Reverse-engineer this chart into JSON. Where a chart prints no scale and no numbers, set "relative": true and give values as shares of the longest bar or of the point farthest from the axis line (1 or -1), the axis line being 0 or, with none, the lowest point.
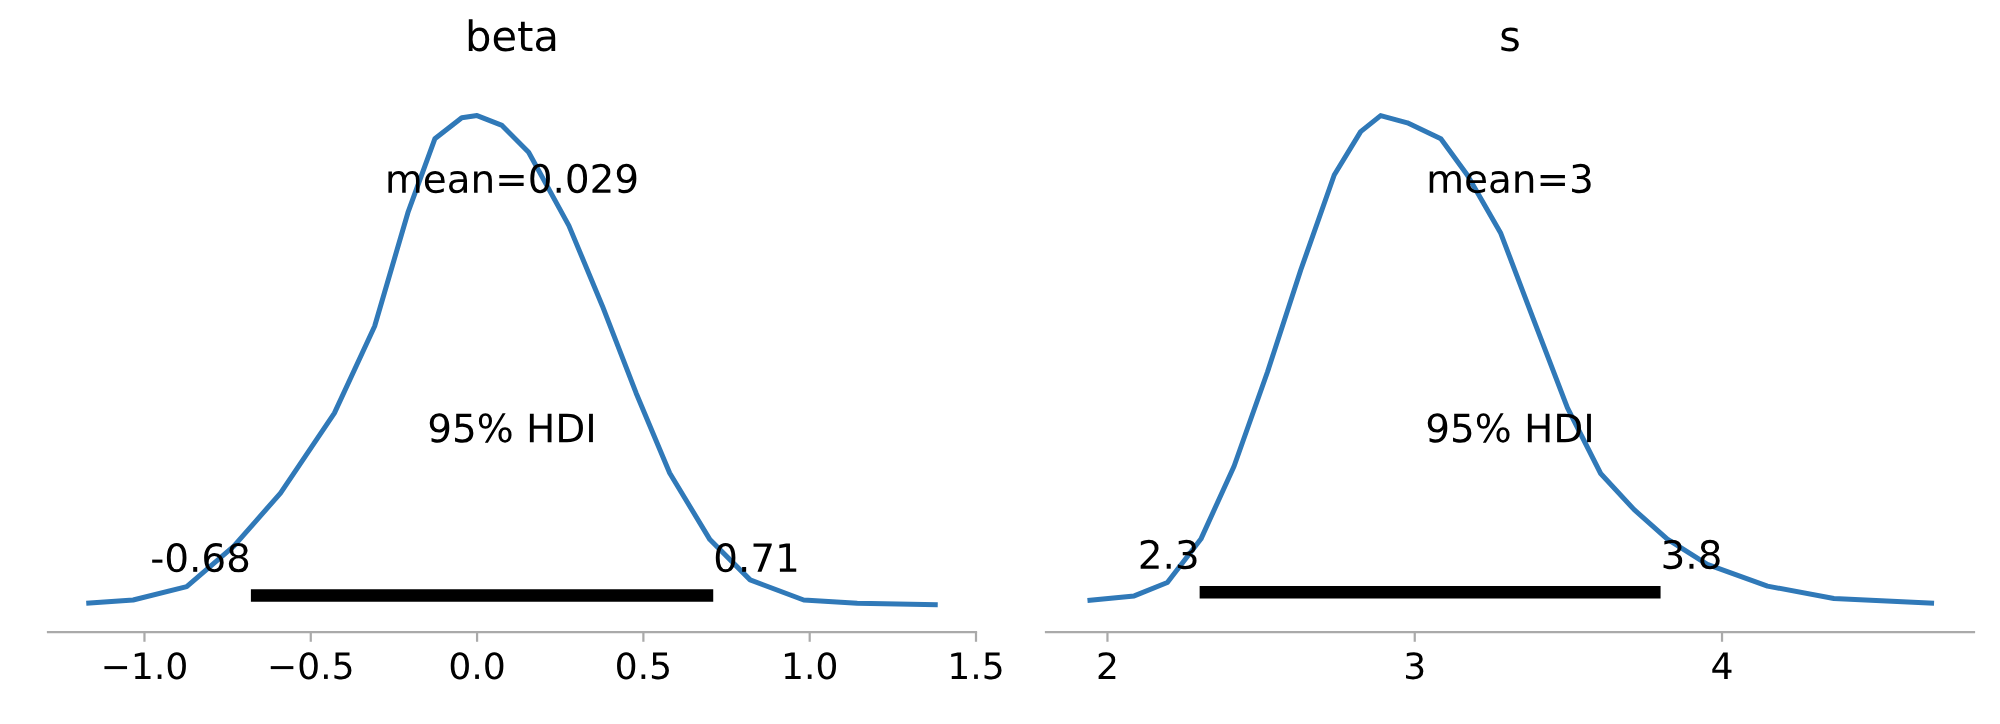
{
  "chart_data": [
    {
      "type": "line",
      "title": "beta",
      "relative": true,
      "tick_labels": "x",
      "xlim": [
        -1.29,
        1.5
      ],
      "xticks": [
        {
          "value": -1.0,
          "label": "−1.0"
        },
        {
          "value": -0.5,
          "label": "−0.5"
        },
        {
          "value": 0.0,
          "label": "0.0"
        },
        {
          "value": 0.5,
          "label": "0.5"
        },
        {
          "value": 1.0,
          "label": "1.0"
        },
        {
          "value": 1.5,
          "label": "1.5"
        }
      ],
      "series": [
        {
          "color": "#3079b8",
          "x": [
            -1.175,
            -1.034,
            -0.873,
            -0.732,
            -0.591,
            -0.429,
            -0.308,
            -0.208,
            -0.127,
            -0.046,
            0.0,
            0.075,
            0.155,
            0.276,
            0.377,
            0.478,
            0.579,
            0.7,
            0.821,
            0.982,
            1.143,
            1.385
          ],
          "values": [
            0.056,
            0.062,
            0.088,
            0.166,
            0.269,
            0.424,
            0.592,
            0.812,
            0.955,
            0.996,
            1.0,
            0.981,
            0.929,
            0.787,
            0.631,
            0.463,
            0.308,
            0.179,
            0.101,
            0.062,
            0.056,
            0.053
          ]
        },
        {
          "color": "#000000",
          "x": [
            -0.68,
            0.71
          ],
          "values": [
            0.071,
            0.071
          ]
        }
      ],
      "annotations": [
        "mean=0.029",
        "95% HDI",
        {
          "text": "-0.68",
          "x": -0.68,
          "y": 0.071
        },
        {
          "text": "0.71",
          "x": 0.71,
          "y": 0.071
        }
      ]
    },
    {
      "type": "line",
      "title": "s",
      "relative": true,
      "tick_labels": "x",
      "xlim": [
        1.8,
        4.82
      ],
      "xticks": [
        2,
        3,
        4
      ],
      "series": [
        {
          "color": "#3079b8",
          "x": [
            1.935,
            2.087,
            2.195,
            2.304,
            2.412,
            2.521,
            2.629,
            2.738,
            2.824,
            2.889,
            2.976,
            3.085,
            3.171,
            3.28,
            3.388,
            3.497,
            3.605,
            3.714,
            3.822,
            3.952,
            4.148,
            4.364,
            4.69
          ],
          "values": [
            0.061,
            0.07,
            0.096,
            0.18,
            0.321,
            0.504,
            0.701,
            0.885,
            0.969,
            1.0,
            0.986,
            0.955,
            0.885,
            0.772,
            0.603,
            0.434,
            0.307,
            0.237,
            0.18,
            0.131,
            0.089,
            0.065,
            0.056
          ]
        },
        {
          "color": "#000000",
          "x": [
            2.3,
            3.8
          ],
          "values": [
            0.077,
            0.077
          ]
        }
      ],
      "annotations": [
        "mean=3",
        "95% HDI",
        {
          "text": "2.3",
          "x": 2.3,
          "y": 0.077
        },
        {
          "text": "3.8",
          "x": 3.8,
          "y": 0.077
        }
      ]
    }
  ]
}
